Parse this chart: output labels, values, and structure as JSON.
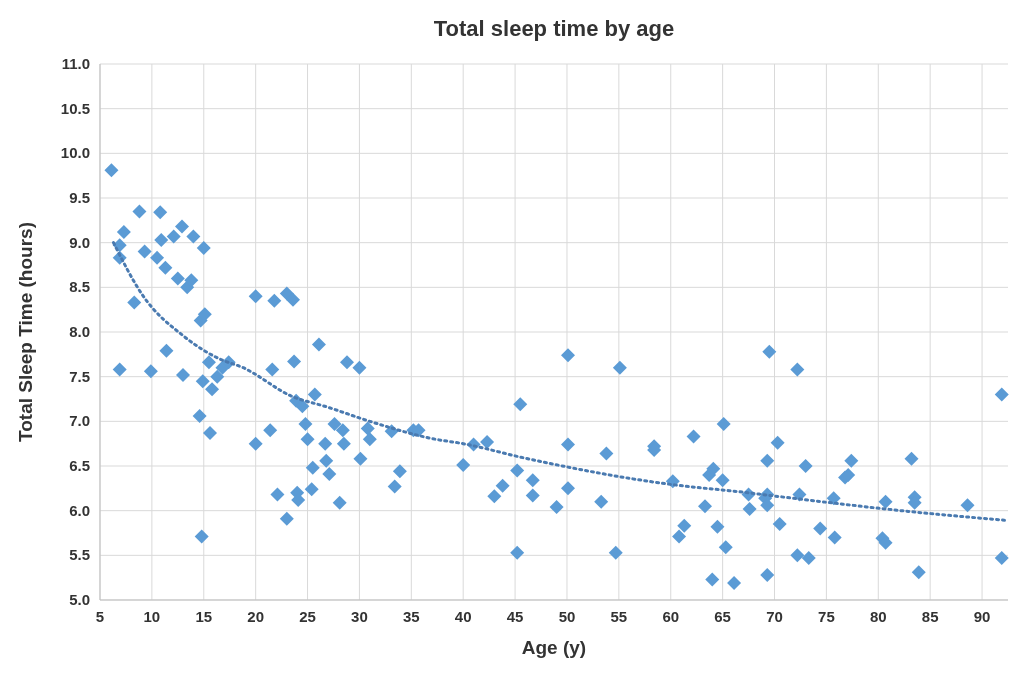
{
  "chart_data": {
    "type": "scatter",
    "title": "Total sleep time by age",
    "xlabel": "Age (y)",
    "ylabel": "Total Sleep Time (hours)",
    "xlim": [
      5,
      92.5
    ],
    "xticks": [
      5,
      10,
      15,
      20,
      25,
      30,
      35,
      40,
      45,
      50,
      55,
      60,
      65,
      70,
      75,
      80,
      85,
      90
    ],
    "ylim": [
      5,
      11
    ],
    "yticks": [
      {
        "value": 5,
        "label": "5.0"
      },
      {
        "value": 5.5,
        "label": "5.5"
      },
      {
        "value": 6,
        "label": "6.0"
      },
      {
        "value": 6.5,
        "label": "6.5"
      },
      {
        "value": 7,
        "label": "7.0"
      },
      {
        "value": 7.5,
        "label": "7.5"
      },
      {
        "value": 8,
        "label": "8.0"
      },
      {
        "value": 8.5,
        "label": "8.5"
      },
      {
        "value": 9,
        "label": "9.0"
      },
      {
        "value": 9.5,
        "label": "9.5"
      },
      {
        "value": 10,
        "label": "10.0"
      },
      {
        "value": 10.5,
        "label": "10.5"
      },
      {
        "value": 11,
        "label": "11.0"
      }
    ],
    "grid": true,
    "series": [
      {
        "color": "#5b9bd5",
        "marker": "diamond",
        "x": [
          6.1,
          6.9,
          6.9,
          7.3,
          6.9,
          8.3,
          8.8,
          9.3,
          9.9,
          10.5,
          10.8,
          10.9,
          11.3,
          11.4,
          12.1,
          12.5,
          12.9,
          13.0,
          13.4,
          13.8,
          14.0,
          14.6,
          14.7,
          14.8,
          14.9,
          15.0,
          15.1,
          15.5,
          15.6,
          15.8,
          16.3,
          16.8,
          17.4,
          20.0,
          20.0,
          21.4,
          21.6,
          21.8,
          22.1,
          23.0,
          23.0,
          23.6,
          23.7,
          23.9,
          24.0,
          24.1,
          24.5,
          24.8,
          25.0,
          25.4,
          25.5,
          25.7,
          26.1,
          26.8,
          26.7,
          27.1,
          27.6,
          28.1,
          28.4,
          28.5,
          28.8,
          30.0,
          30.1,
          30.8,
          31.0,
          33.1,
          33.4,
          33.9,
          35.2,
          35.7,
          40.0,
          41.0,
          42.3,
          43.0,
          43.8,
          45.2,
          45.2,
          45.5,
          46.7,
          46.7,
          49.0,
          50.1,
          50.1,
          50.1,
          53.3,
          53.8,
          54.7,
          55.1,
          58.4,
          58.4,
          60.2,
          60.8,
          61.3,
          62.2,
          63.3,
          63.7,
          64.1,
          64.0,
          64.5,
          65.0,
          65.1,
          65.3,
          66.1,
          67.5,
          67.6,
          69.1,
          69.3,
          69.3,
          69.3,
          69.3,
          69.5,
          70.3,
          70.5,
          72.2,
          72.2,
          72.4,
          73.0,
          73.3,
          74.4,
          75.7,
          75.8,
          76.8,
          77.1,
          77.4,
          80.4,
          80.7,
          80.7,
          83.2,
          83.5,
          83.5,
          83.9,
          88.6,
          91.9,
          91.9
        ],
        "values": [
          9.81,
          8.97,
          8.83,
          9.12,
          7.58,
          8.33,
          9.35,
          8.9,
          7.56,
          8.83,
          9.34,
          9.03,
          8.72,
          7.79,
          9.07,
          8.6,
          9.18,
          7.52,
          8.5,
          8.58,
          9.07,
          7.06,
          8.13,
          5.71,
          7.45,
          8.94,
          8.2,
          7.66,
          6.87,
          7.36,
          7.5,
          7.6,
          7.66,
          8.4,
          6.75,
          6.9,
          7.58,
          8.35,
          6.18,
          8.43,
          5.91,
          8.36,
          7.67,
          7.23,
          6.2,
          6.12,
          7.17,
          6.97,
          6.8,
          6.24,
          6.48,
          7.3,
          7.86,
          6.56,
          6.75,
          6.41,
          6.97,
          6.09,
          6.9,
          6.75,
          7.66,
          7.6,
          6.58,
          6.92,
          6.8,
          6.89,
          6.27,
          6.44,
          6.9,
          6.9,
          6.51,
          6.74,
          6.77,
          6.16,
          6.28,
          6.45,
          5.53,
          7.19,
          6.34,
          6.17,
          6.04,
          6.25,
          7.74,
          6.74,
          6.1,
          6.64,
          5.53,
          7.6,
          6.72,
          6.68,
          6.33,
          5.71,
          5.83,
          6.83,
          6.05,
          6.4,
          6.47,
          5.23,
          5.82,
          6.34,
          6.97,
          5.59,
          5.19,
          6.18,
          6.02,
          6.14,
          6.56,
          6.18,
          6.06,
          5.28,
          7.78,
          6.76,
          5.85,
          5.5,
          7.58,
          6.18,
          6.5,
          5.47,
          5.8,
          6.14,
          5.7,
          6.37,
          6.4,
          6.56,
          5.69,
          6.1,
          5.64,
          6.58,
          6.15,
          6.09,
          5.31,
          6.06,
          5.47,
          7.3
        ]
      },
      {
        "type": "line",
        "color": "#4a7ab0",
        "marker": "none",
        "line_style": "dotted",
        "x": [
          6.3,
          9,
          13.1,
          16.5,
          18.8,
          23.5,
          26.9,
          31,
          37.3,
          40,
          45.5,
          59.6,
          67.5,
          71,
          83.9,
          92.5
        ],
        "values": [
          9.0,
          8.43,
          7.95,
          7.7,
          7.6,
          7.28,
          7.16,
          7.0,
          6.8,
          6.75,
          6.6,
          6.3,
          6.2,
          6.15,
          5.98,
          5.89
        ]
      }
    ]
  }
}
